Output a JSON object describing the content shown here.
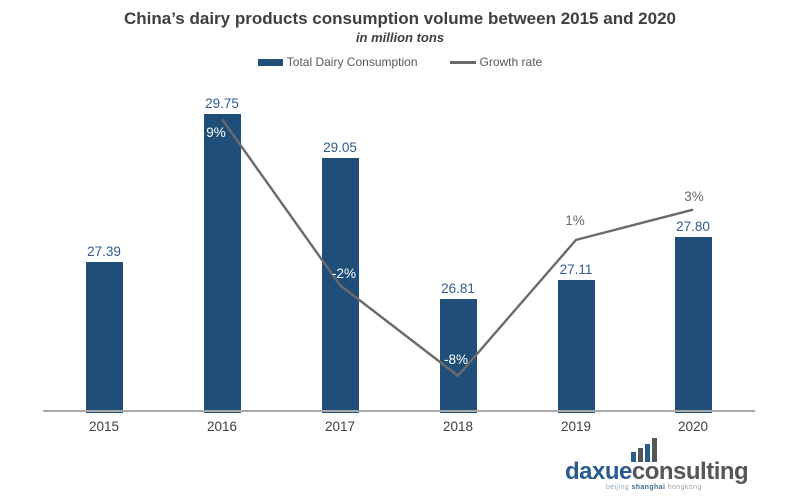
{
  "title": "China’s dairy products consumption volume between 2015 and 2020",
  "subtitle": "in million tons",
  "legend": {
    "items": [
      {
        "label": "Total Dairy Consumption",
        "swatch": "bar-swatch"
      },
      {
        "label": "Growth rate",
        "swatch": "line-swatch"
      }
    ]
  },
  "chart_data": {
    "type": "bar",
    "title": "China’s dairy products consumption volume between 2015 and 2020",
    "subtitle_unit": "in million tons",
    "categories": [
      "2015",
      "2016",
      "2017",
      "2018",
      "2019",
      "2020"
    ],
    "series": [
      {
        "name": "Total Dairy Consumption",
        "type": "bar",
        "values": [
          27.39,
          29.75,
          29.05,
          26.81,
          27.11,
          27.8
        ],
        "value_labels": [
          "27.39",
          "29.75",
          "29.05",
          "26.81",
          "27.11",
          "27.80"
        ],
        "color": "#1f4e79",
        "label_color": "#2e5c8f"
      },
      {
        "name": "Growth rate",
        "type": "line",
        "values": [
          null,
          9,
          -2,
          -8,
          1,
          3
        ],
        "value_labels": [
          null,
          "9%",
          "-2%",
          "-8%",
          "1%",
          "3%"
        ],
        "unit": "%",
        "color": "#6a6a6a"
      }
    ],
    "xlabel": "",
    "ylabel": "",
    "y_axis_visible": false,
    "gridlines": false,
    "legend_position": "top"
  },
  "colors": {
    "bar": "#1f4e79",
    "bar_value_label": "#2e5c8f",
    "growth_line": "#6a6a6a",
    "growth_label_on_bar": "#ffffff",
    "growth_label_off_bar": "#6a6a6a",
    "title_text": "#3f3f3f",
    "axis_line": "#a9a9a9",
    "year_label": "#404040",
    "legend_text": "#595959"
  },
  "logo": {
    "name_part1": "daxue",
    "name_part2": "consulting",
    "tagline": [
      "beijing",
      "shanghai",
      "hongkong"
    ],
    "colors": {
      "blue": "#2a5b8e",
      "gray": "#55565a"
    }
  }
}
